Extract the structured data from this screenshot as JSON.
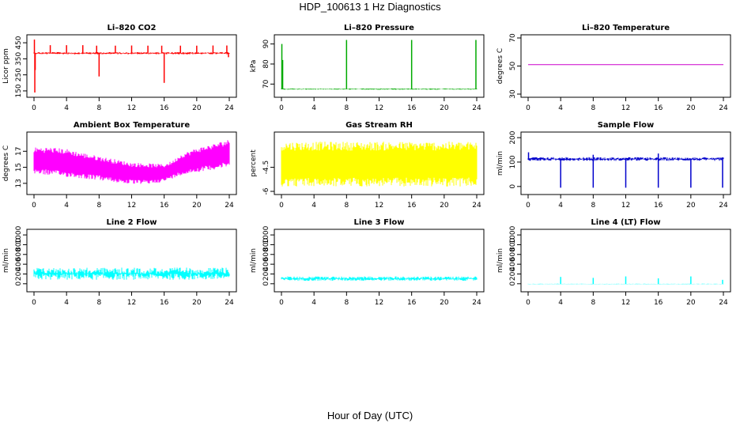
{
  "title": "HDP_100613 1 Hz Diagnostics",
  "xlabel": "Hour of Day (UTC)",
  "chart_data": [
    {
      "type": "line",
      "title": "Li–820 CO2",
      "ylabel": "Licor ppm",
      "color": "#ff0000",
      "xlim": [
        0,
        24
      ],
      "xticks": [
        0,
        4,
        8,
        12,
        16,
        20,
        24
      ],
      "ylim": [
        130,
        480
      ],
      "yticks": [
        150,
        250,
        350,
        450
      ],
      "baseline": 385,
      "band": [
        378,
        392
      ],
      "spikes": [
        {
          "x": 0.05,
          "y": 470
        },
        {
          "x": 0.1,
          "y": 140
        },
        {
          "x": 0.15,
          "y": 280
        },
        {
          "x": 2.0,
          "y": 435
        },
        {
          "x": 4.0,
          "y": 435
        },
        {
          "x": 6.0,
          "y": 435
        },
        {
          "x": 7.7,
          "y": 432
        },
        {
          "x": 8.0,
          "y": 240
        },
        {
          "x": 10.0,
          "y": 432
        },
        {
          "x": 12.0,
          "y": 433
        },
        {
          "x": 14.0,
          "y": 432
        },
        {
          "x": 15.7,
          "y": 432
        },
        {
          "x": 16.0,
          "y": 200
        },
        {
          "x": 18.0,
          "y": 432
        },
        {
          "x": 20.0,
          "y": 432
        },
        {
          "x": 22.0,
          "y": 433
        },
        {
          "x": 23.7,
          "y": 433
        },
        {
          "x": 23.9,
          "y": 360
        }
      ]
    },
    {
      "type": "line",
      "title": "Li–820 Pressure",
      "ylabel": "kPa",
      "color": "#00aa00",
      "xlim": [
        0,
        24
      ],
      "xticks": [
        0,
        4,
        8,
        12,
        16,
        20,
        24
      ],
      "ylim": [
        65,
        93
      ],
      "yticks": [
        70,
        80,
        90
      ],
      "baseline": 67.5,
      "band": [
        67.2,
        67.8
      ],
      "spikes": [
        {
          "x": 0.05,
          "y": 90
        },
        {
          "x": 0.15,
          "y": 82
        },
        {
          "x": 8.0,
          "y": 92
        },
        {
          "x": 16.0,
          "y": 92
        },
        {
          "x": 23.9,
          "y": 92
        }
      ]
    },
    {
      "type": "line",
      "title": "Li–820 Temperature",
      "ylabel": "degrees C",
      "color": "#cc00cc",
      "xlim": [
        0,
        24
      ],
      "xticks": [
        0,
        4,
        8,
        12,
        16,
        20,
        24
      ],
      "ylim": [
        30,
        70
      ],
      "yticks": [
        30,
        50,
        70
      ],
      "baseline": 51,
      "band": [
        51,
        51
      ],
      "spikes": []
    },
    {
      "type": "line",
      "title": "Ambient Box Temperature",
      "ylabel": "degrees C",
      "color": "#ff00ff",
      "xlim": [
        0,
        24
      ],
      "xticks": [
        0,
        4,
        8,
        12,
        16,
        20,
        24
      ],
      "ylim": [
        12,
        19
      ],
      "yticks": [
        13,
        15,
        17
      ],
      "envelope": {
        "x": [
          0,
          2,
          4,
          6,
          8,
          10,
          12,
          14,
          16,
          17,
          18,
          20,
          22,
          24
        ],
        "lo": [
          14.2,
          14.0,
          13.8,
          13.6,
          13.4,
          13.1,
          12.9,
          12.9,
          13.2,
          13.6,
          14.0,
          14.4,
          14.7,
          15.0
        ],
        "hi": [
          17.5,
          17.5,
          17.3,
          16.8,
          16.4,
          16.0,
          15.6,
          15.5,
          15.4,
          15.8,
          16.6,
          17.4,
          17.9,
          18.5
        ]
      }
    },
    {
      "type": "line",
      "title": "Gas Stream RH",
      "ylabel": "percent",
      "color": "#ffff00",
      "xlim": [
        0,
        24
      ],
      "xticks": [
        0,
        4,
        8,
        12,
        16,
        20,
        24
      ],
      "ylim": [
        -6.0,
        -2.5
      ],
      "yticks": [
        -6.0,
        -4.5
      ],
      "envelope": {
        "x": [
          0,
          24
        ],
        "lo": [
          -5.7,
          -5.7
        ],
        "hi": [
          -2.9,
          -2.9
        ]
      }
    },
    {
      "type": "line",
      "title": "Sample Flow",
      "ylabel": "ml/min",
      "color": "#0000cc",
      "xlim": [
        0,
        24
      ],
      "xticks": [
        0,
        4,
        8,
        12,
        16,
        20,
        24
      ],
      "ylim": [
        -20,
        210
      ],
      "yticks": [
        0,
        100,
        200
      ],
      "baseline": 112,
      "band": [
        105,
        120
      ],
      "spikes": [
        {
          "x": 0.05,
          "y": 140
        },
        {
          "x": 4.0,
          "y": -5
        },
        {
          "x": 8.0,
          "y": -5
        },
        {
          "x": 12.0,
          "y": -5
        },
        {
          "x": 16.0,
          "y": -5
        },
        {
          "x": 20.0,
          "y": -5
        },
        {
          "x": 23.9,
          "y": -5
        },
        {
          "x": 8.0,
          "y": 130
        },
        {
          "x": 16.0,
          "y": 135
        }
      ]
    },
    {
      "type": "line",
      "title": "Line 2 Flow",
      "ylabel": "ml/min",
      "color": "#00ffff",
      "xlim": [
        0,
        24
      ],
      "xticks": [
        0,
        4,
        8,
        12,
        16,
        20,
        24
      ],
      "ylim": [
        -100,
        1050
      ],
      "yticks": [
        0,
        200,
        400,
        600,
        800,
        1000
      ],
      "baseline": 220,
      "band": [
        80,
        330
      ],
      "spikes": []
    },
    {
      "type": "line",
      "title": "Line 3 Flow",
      "ylabel": "ml/min",
      "color": "#00ffff",
      "xlim": [
        0,
        24
      ],
      "xticks": [
        0,
        4,
        8,
        12,
        16,
        20,
        24
      ],
      "ylim": [
        -100,
        1050
      ],
      "yticks": [
        0,
        200,
        400,
        600,
        800,
        1000
      ],
      "baseline": 110,
      "band": [
        60,
        150
      ],
      "spikes": []
    },
    {
      "type": "line",
      "title": "Line 4 (LT) Flow",
      "ylabel": "ml/min",
      "color": "#00ffff",
      "xlim": [
        0,
        24
      ],
      "xticks": [
        0,
        4,
        8,
        12,
        16,
        20,
        24
      ],
      "ylim": [
        -100,
        1050
      ],
      "yticks": [
        0,
        200,
        400,
        600,
        800,
        1000
      ],
      "baseline": -5,
      "band": [
        -10,
        0
      ],
      "spikes": [
        {
          "x": 4.0,
          "y": 140
        },
        {
          "x": 8.0,
          "y": 120
        },
        {
          "x": 12.0,
          "y": 150
        },
        {
          "x": 16.0,
          "y": 110
        },
        {
          "x": 20.0,
          "y": 150
        },
        {
          "x": 23.9,
          "y": 80
        }
      ]
    }
  ]
}
